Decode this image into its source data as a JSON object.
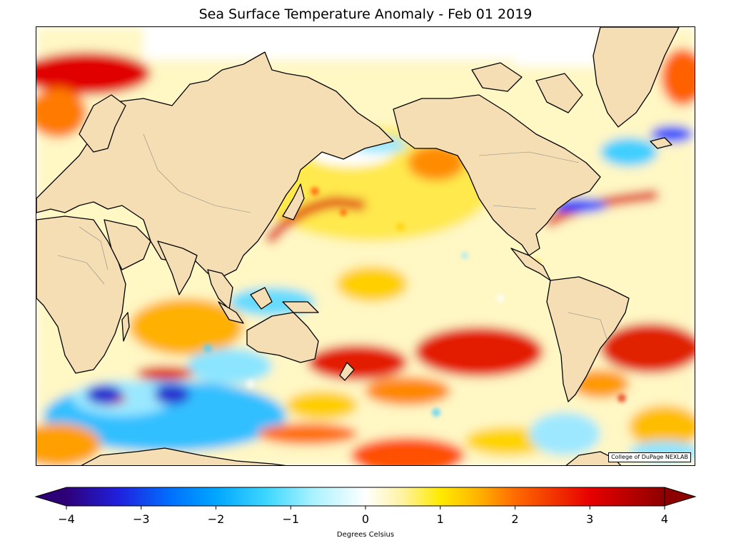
{
  "title": "Sea Surface Temperature Anomaly - Feb 01 2019",
  "credit": "College of DuPage NEXLAB",
  "colors": {
    "land": "#f5deb3",
    "coastline": "#000000",
    "borders": "#888888"
  },
  "colorbar": {
    "label": "Degrees Celsius",
    "min": -4,
    "max": 4,
    "ticks": [
      {
        "value": -4,
        "label": "−4"
      },
      {
        "value": -3,
        "label": "−3"
      },
      {
        "value": -2,
        "label": "−2"
      },
      {
        "value": -1,
        "label": "−1"
      },
      {
        "value": 0,
        "label": "0"
      },
      {
        "value": 1,
        "label": "1"
      },
      {
        "value": 2,
        "label": "2"
      },
      {
        "value": 3,
        "label": "3"
      },
      {
        "value": 4,
        "label": "4"
      }
    ],
    "color_stops": [
      {
        "value": -4,
        "color": "#2e0077"
      },
      {
        "value": -3.3,
        "color": "#2020dd"
      },
      {
        "value": -2.6,
        "color": "#0070ff"
      },
      {
        "value": -2,
        "color": "#00a6ff"
      },
      {
        "value": -1.3,
        "color": "#40d8ff"
      },
      {
        "value": -0.7,
        "color": "#aaf2ff"
      },
      {
        "value": 0,
        "color": "#ffffff"
      },
      {
        "value": 0.5,
        "color": "#fff2a0"
      },
      {
        "value": 1,
        "color": "#ffea00"
      },
      {
        "value": 1.5,
        "color": "#ffb400"
      },
      {
        "value": 2,
        "color": "#ff6a00"
      },
      {
        "value": 3,
        "color": "#e60000"
      },
      {
        "value": 4,
        "color": "#8c0000"
      }
    ]
  }
}
